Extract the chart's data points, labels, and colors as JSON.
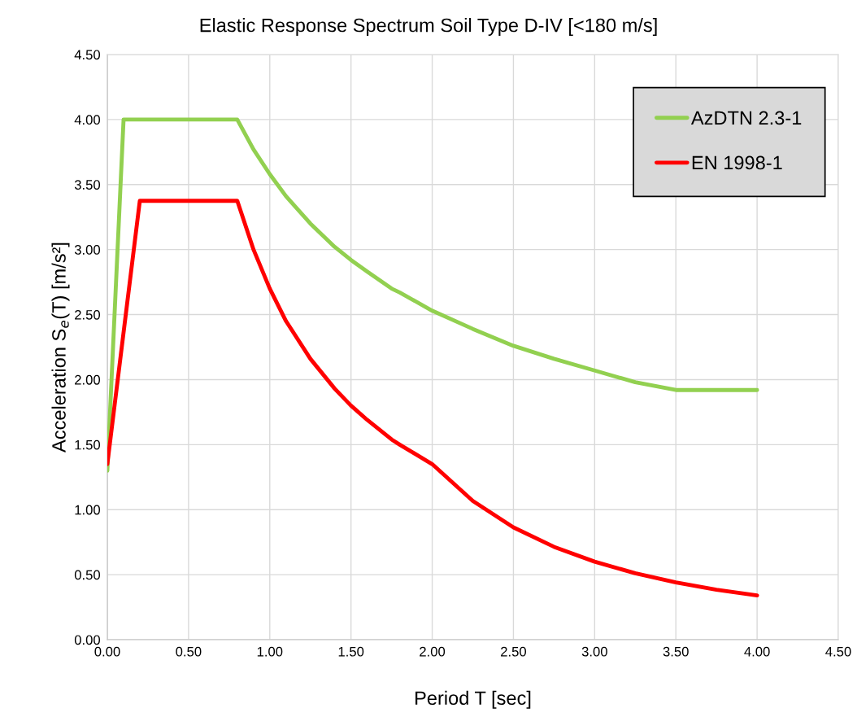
{
  "chart_data": {
    "type": "line",
    "title": "Elastic Response Spectrum Soil Type D-IV [<180 m/s]",
    "xlabel": "Period T [sec]",
    "ylabel": "Acceleration S$_{e}$(T) [m/s²]",
    "xlim": [
      0,
      4.5
    ],
    "ylim": [
      0,
      4.5
    ],
    "xticks": [
      {
        "value": 0,
        "label": "0.00"
      },
      {
        "value": 0.5,
        "label": "0.50"
      },
      {
        "value": 1,
        "label": "1.00"
      },
      {
        "value": 1.5,
        "label": "1.50"
      },
      {
        "value": 2,
        "label": "2.00"
      },
      {
        "value": 2.5,
        "label": "2.50"
      },
      {
        "value": 3,
        "label": "3.00"
      },
      {
        "value": 3.5,
        "label": "3.50"
      },
      {
        "value": 4,
        "label": "4.00"
      },
      {
        "value": 4.5,
        "label": "4.50"
      }
    ],
    "yticks": [
      {
        "value": 0,
        "label": "0.00"
      },
      {
        "value": 0.5,
        "label": "0.50"
      },
      {
        "value": 1,
        "label": "1.00"
      },
      {
        "value": 1.5,
        "label": "1.50"
      },
      {
        "value": 2,
        "label": "2.00"
      },
      {
        "value": 2.5,
        "label": "2.50"
      },
      {
        "value": 3,
        "label": "3.00"
      },
      {
        "value": 3.5,
        "label": "3.50"
      },
      {
        "value": 4,
        "label": "4.00"
      },
      {
        "value": 4.5,
        "label": "4.50"
      }
    ],
    "grid": true,
    "legend": "top right",
    "marker": "none",
    "line_style": "solid",
    "series": [
      {
        "name": "AzDTN 2.3-1",
        "color": "#92d050",
        "x": [
          0,
          0.1,
          0.8,
          0.9,
          1.0,
          1.1,
          1.25,
          1.4,
          1.5,
          1.6,
          1.75,
          1.8,
          2.0,
          2.25,
          2.5,
          2.75,
          3.0,
          3.25,
          3.5,
          4.0
        ],
        "values": [
          1.3,
          4.0,
          4.0,
          3.77,
          3.58,
          3.41,
          3.2,
          3.02,
          2.92,
          2.83,
          2.7,
          2.67,
          2.53,
          2.39,
          2.26,
          2.16,
          2.07,
          1.98,
          1.92,
          1.92
        ]
      },
      {
        "name": "EN 1998-1",
        "color": "#ff0000",
        "x": [
          0,
          0.2,
          0.8,
          0.9,
          1.0,
          1.1,
          1.25,
          1.4,
          1.5,
          1.6,
          1.75,
          1.8,
          2.0,
          2.25,
          2.5,
          2.75,
          3.0,
          3.25,
          3.5,
          3.75,
          4.0
        ],
        "values": [
          1.35,
          3.375,
          3.375,
          3.0,
          2.7,
          2.45,
          2.16,
          1.93,
          1.8,
          1.69,
          1.54,
          1.5,
          1.35,
          1.067,
          0.864,
          0.714,
          0.6,
          0.511,
          0.441,
          0.384,
          0.34
        ]
      }
    ]
  }
}
